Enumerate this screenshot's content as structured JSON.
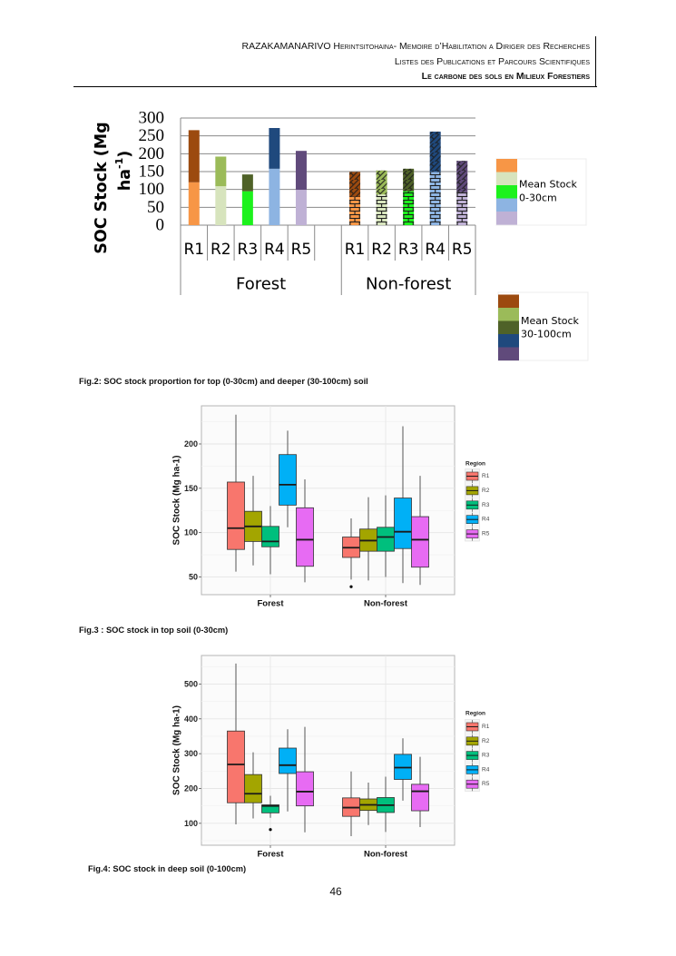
{
  "header": {
    "line1": "RAZAKAMANARIVO Herintsitohaina- Memoire d’Habilitation a Diriger des Recherches",
    "line2": "Listes des Publications et Parcours Scientifiques",
    "line3": "Le carbone des sols en Milieux Forestiers"
  },
  "captions": {
    "fig2": "Fig.2: SOC stock proportion for top (0-30cm) and deeper (30-100cm) soil",
    "fig3": "Fig.3 : SOC stock in top soil (0-30cm)",
    "fig4": "Fig.4: SOC stock in deep soil (0-100cm)"
  },
  "page_number": "46",
  "chart_data": [
    {
      "type": "bar",
      "stacked": true,
      "ylabel": {
        "line1": "SOC Stock (Mg",
        "line2": "ha",
        "sup": "-1",
        "close": ")"
      },
      "ylim": [
        0,
        300
      ],
      "yticks": [
        0,
        50,
        100,
        150,
        200,
        250,
        300
      ],
      "grid": true,
      "groups": [
        "Forest",
        "Non-forest"
      ],
      "categories": [
        "R1",
        "R2",
        "R3",
        "R4",
        "R5"
      ],
      "hatched": {
        "Forest": false,
        "Non-forest": true
      },
      "legend_position": "right",
      "series": [
        {
          "legend": [
            "Mean Stock",
            "0-30cm"
          ],
          "colors": [
            "#F79646",
            "#D7E4BD",
            "#1CF21C",
            "#8DB4E2",
            "#BFB1D5"
          ],
          "values": {
            "Forest": [
              120,
              109,
              95,
              158,
              99
            ],
            "Non-forest": [
              80,
              86,
              95,
              149,
              92
            ]
          }
        },
        {
          "legend": [
            "Mean Stock",
            "30-100cm"
          ],
          "colors": [
            "#9C4A0F",
            "#9BBB59",
            "#4F6228",
            "#1F497D",
            "#604A7B"
          ],
          "values": {
            "Forest": [
              146,
              83,
              47,
              114,
              109
            ],
            "Non-forest": [
              69,
              67,
              63,
              113,
              88
            ]
          }
        }
      ]
    },
    {
      "type": "boxplot",
      "ylabel": "SOC Stock (Mg ha-1)",
      "ylim": [
        30,
        243
      ],
      "yticks": [
        50,
        100,
        150,
        200
      ],
      "grid": true,
      "groups": [
        "Forest",
        "Non-forest"
      ],
      "legend_title": "Region",
      "legend_position": "right",
      "regions": [
        "R1",
        "R2",
        "R3",
        "R4",
        "R5"
      ],
      "colors": [
        "#F8766D",
        "#A3A500",
        "#00BF7D",
        "#00B0F6",
        "#E76BF3"
      ],
      "stats": {
        "Forest": [
          {
            "min": 56,
            "q1": 81,
            "median": 105,
            "q3": 157,
            "max": 233
          },
          {
            "min": 63,
            "q1": 90,
            "median": 107,
            "q3": 124,
            "max": 164
          },
          {
            "min": 53,
            "q1": 84,
            "median": 90,
            "q3": 107,
            "max": 130
          },
          {
            "min": 106,
            "q1": 131,
            "median": 154,
            "q3": 188,
            "max": 215
          },
          {
            "min": 44,
            "q1": 62,
            "median": 92,
            "q3": 128,
            "max": 160
          }
        ],
        "Non-forest": [
          {
            "min": 47,
            "q1": 72,
            "median": 83,
            "q3": 95,
            "max": 116
          },
          {
            "min": 46,
            "q1": 79,
            "median": 91,
            "q3": 104,
            "max": 140
          },
          {
            "min": 50,
            "q1": 79,
            "median": 95,
            "q3": 106,
            "max": 142
          },
          {
            "min": 43,
            "q1": 82,
            "median": 101,
            "q3": 139,
            "max": 220
          },
          {
            "min": 41,
            "q1": 61,
            "median": 92,
            "q3": 118,
            "max": 164
          }
        ]
      },
      "outliers": [
        {
          "group": "Non-forest",
          "region": "R1",
          "value": 39
        }
      ]
    },
    {
      "type": "boxplot",
      "ylabel": "SOC Stock (Mg ha-1)",
      "ylim": [
        37,
        582
      ],
      "yticks": [
        100,
        200,
        300,
        400,
        500
      ],
      "grid": true,
      "groups": [
        "Forest",
        "Non-forest"
      ],
      "legend_title": "Region",
      "legend_position": "right",
      "regions": [
        "R1",
        "R2",
        "R3",
        "R4",
        "R5"
      ],
      "colors": [
        "#F8766D",
        "#A3A500",
        "#00BF7D",
        "#00B0F6",
        "#E76BF3"
      ],
      "stats": {
        "Forest": [
          {
            "min": 97,
            "q1": 159,
            "median": 269,
            "q3": 365,
            "max": 559
          },
          {
            "min": 114,
            "q1": 159,
            "median": 185,
            "q3": 240,
            "max": 304
          },
          {
            "min": 116,
            "q1": 130,
            "median": 150,
            "q3": 153,
            "max": 179
          },
          {
            "min": 134,
            "q1": 243,
            "median": 267,
            "q3": 316,
            "max": 370
          },
          {
            "min": 74,
            "q1": 150,
            "median": 191,
            "q3": 248,
            "max": 377
          }
        ],
        "Non-forest": [
          {
            "min": 63,
            "q1": 120,
            "median": 145,
            "q3": 173,
            "max": 249
          },
          {
            "min": 95,
            "q1": 137,
            "median": 153,
            "q3": 170,
            "max": 217
          },
          {
            "min": 75,
            "q1": 131,
            "median": 152,
            "q3": 174,
            "max": 234
          },
          {
            "min": 165,
            "q1": 226,
            "median": 260,
            "q3": 298,
            "max": 344
          },
          {
            "min": 89,
            "q1": 136,
            "median": 192,
            "q3": 212,
            "max": 291
          }
        ]
      },
      "outliers": [
        {
          "group": "Forest",
          "region": "R3",
          "value": 82
        }
      ]
    }
  ]
}
